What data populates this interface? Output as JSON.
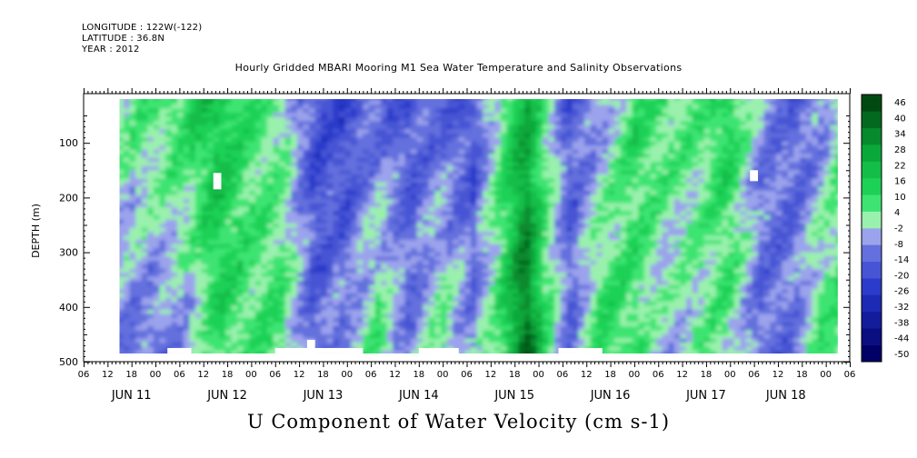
{
  "header": {
    "longitude": "LONGITUDE : 122W(-122)",
    "latitude": "LATITUDE : 36.8N",
    "year": "YEAR : 2012"
  },
  "colors": {
    "strong_negative": "#000066",
    "negative": "#6b78e0",
    "weak_negative": "#b3b8f2",
    "weak_positive": "#9ff2b0",
    "positive": "#22e060",
    "strong_positive": "#004a12",
    "missing": "#ffffff"
  },
  "chart_data": {
    "type": "heatmap",
    "title": "Hourly Gridded MBARI Mooring M1 Sea Water Temperature and Salinity Observations",
    "xlabel": "U Component of Water Velocity (cm s-1)",
    "ylabel": "DEPTH (m)",
    "y_reversed": true,
    "ylim": [
      500,
      10
    ],
    "y_ticks": [
      100,
      200,
      300,
      400,
      500
    ],
    "x_hour_range": [
      0,
      192
    ],
    "x_ticks_hours": [
      "06",
      "12",
      "18",
      "00",
      "06",
      "12",
      "18",
      "00",
      "06",
      "12",
      "18",
      "00",
      "06",
      "12",
      "18",
      "00",
      "06",
      "12",
      "18",
      "00",
      "06",
      "12",
      "18",
      "00",
      "06",
      "12",
      "18",
      "00",
      "06",
      "12",
      "18",
      "00",
      "06"
    ],
    "x_day_labels": [
      "JUN 11",
      "JUN 12",
      "JUN 13",
      "JUN 14",
      "JUN 15",
      "JUN 16",
      "JUN 17",
      "JUN 18"
    ],
    "data_hour_range": [
      9,
      189
    ],
    "data_depth_range": [
      20,
      485
    ],
    "colorbar": {
      "levels": [
        -50,
        -44,
        -38,
        -32,
        -26,
        -20,
        -14,
        -8,
        -2,
        4,
        10,
        16,
        22,
        28,
        34,
        40,
        46
      ],
      "labels": [
        "46",
        "40",
        "34",
        "28",
        "22",
        "16",
        "10",
        "4",
        "-2",
        "-8",
        "-14",
        "-20",
        "-26",
        "-32",
        "-38",
        "-44",
        "-50"
      ]
    },
    "column_velocity_cm_s": [
      {
        "hour": 9,
        "top": 4,
        "bottom": -10
      },
      {
        "hour": 17,
        "top": 6,
        "bottom": -12
      },
      {
        "hour": 25,
        "top": 12,
        "bottom": -8
      },
      {
        "hour": 33,
        "top": 18,
        "bottom": 10
      },
      {
        "hour": 41,
        "top": 8,
        "bottom": 6
      },
      {
        "hour": 49,
        "top": 2,
        "bottom": 8
      },
      {
        "hour": 57,
        "top": -18,
        "bottom": -14
      },
      {
        "hour": 65,
        "top": -20,
        "bottom": -6
      },
      {
        "hour": 73,
        "top": -12,
        "bottom": 8
      },
      {
        "hour": 81,
        "top": -16,
        "bottom": -10
      },
      {
        "hour": 89,
        "top": -14,
        "bottom": 6
      },
      {
        "hour": 97,
        "top": -18,
        "bottom": -8
      },
      {
        "hour": 105,
        "top": 8,
        "bottom": 14
      },
      {
        "hour": 110,
        "top": 22,
        "bottom": 40
      },
      {
        "hour": 115,
        "top": 4,
        "bottom": 10
      },
      {
        "hour": 121,
        "top": -16,
        "bottom": -12
      },
      {
        "hour": 129,
        "top": -8,
        "bottom": 12
      },
      {
        "hour": 137,
        "top": 10,
        "bottom": 8
      },
      {
        "hour": 145,
        "top": 8,
        "bottom": -6
      },
      {
        "hour": 153,
        "top": 4,
        "bottom": 2
      },
      {
        "hour": 161,
        "top": 14,
        "bottom": 4
      },
      {
        "hour": 169,
        "top": -6,
        "bottom": -14
      },
      {
        "hour": 177,
        "top": -14,
        "bottom": -10
      },
      {
        "hour": 185,
        "top": -10,
        "bottom": 10
      },
      {
        "hour": 189,
        "top": 6,
        "bottom": 8
      }
    ],
    "missing_cells": [
      {
        "hour_start": 32.5,
        "hour_end": 34.5,
        "depth_start": 155,
        "depth_end": 185
      },
      {
        "hour_start": 167,
        "hour_end": 169,
        "depth_start": 150,
        "depth_end": 170
      },
      {
        "hour_start": 56,
        "hour_end": 58,
        "depth_start": 460,
        "depth_end": 485
      },
      {
        "hour_start": 21,
        "hour_end": 27,
        "depth_start": 475,
        "depth_end": 485
      },
      {
        "hour_start": 48,
        "hour_end": 70,
        "depth_start": 475,
        "depth_end": 485
      },
      {
        "hour_start": 84,
        "hour_end": 94,
        "depth_start": 475,
        "depth_end": 485
      },
      {
        "hour_start": 119,
        "hour_end": 130,
        "depth_start": 475,
        "depth_end": 485
      }
    ]
  }
}
